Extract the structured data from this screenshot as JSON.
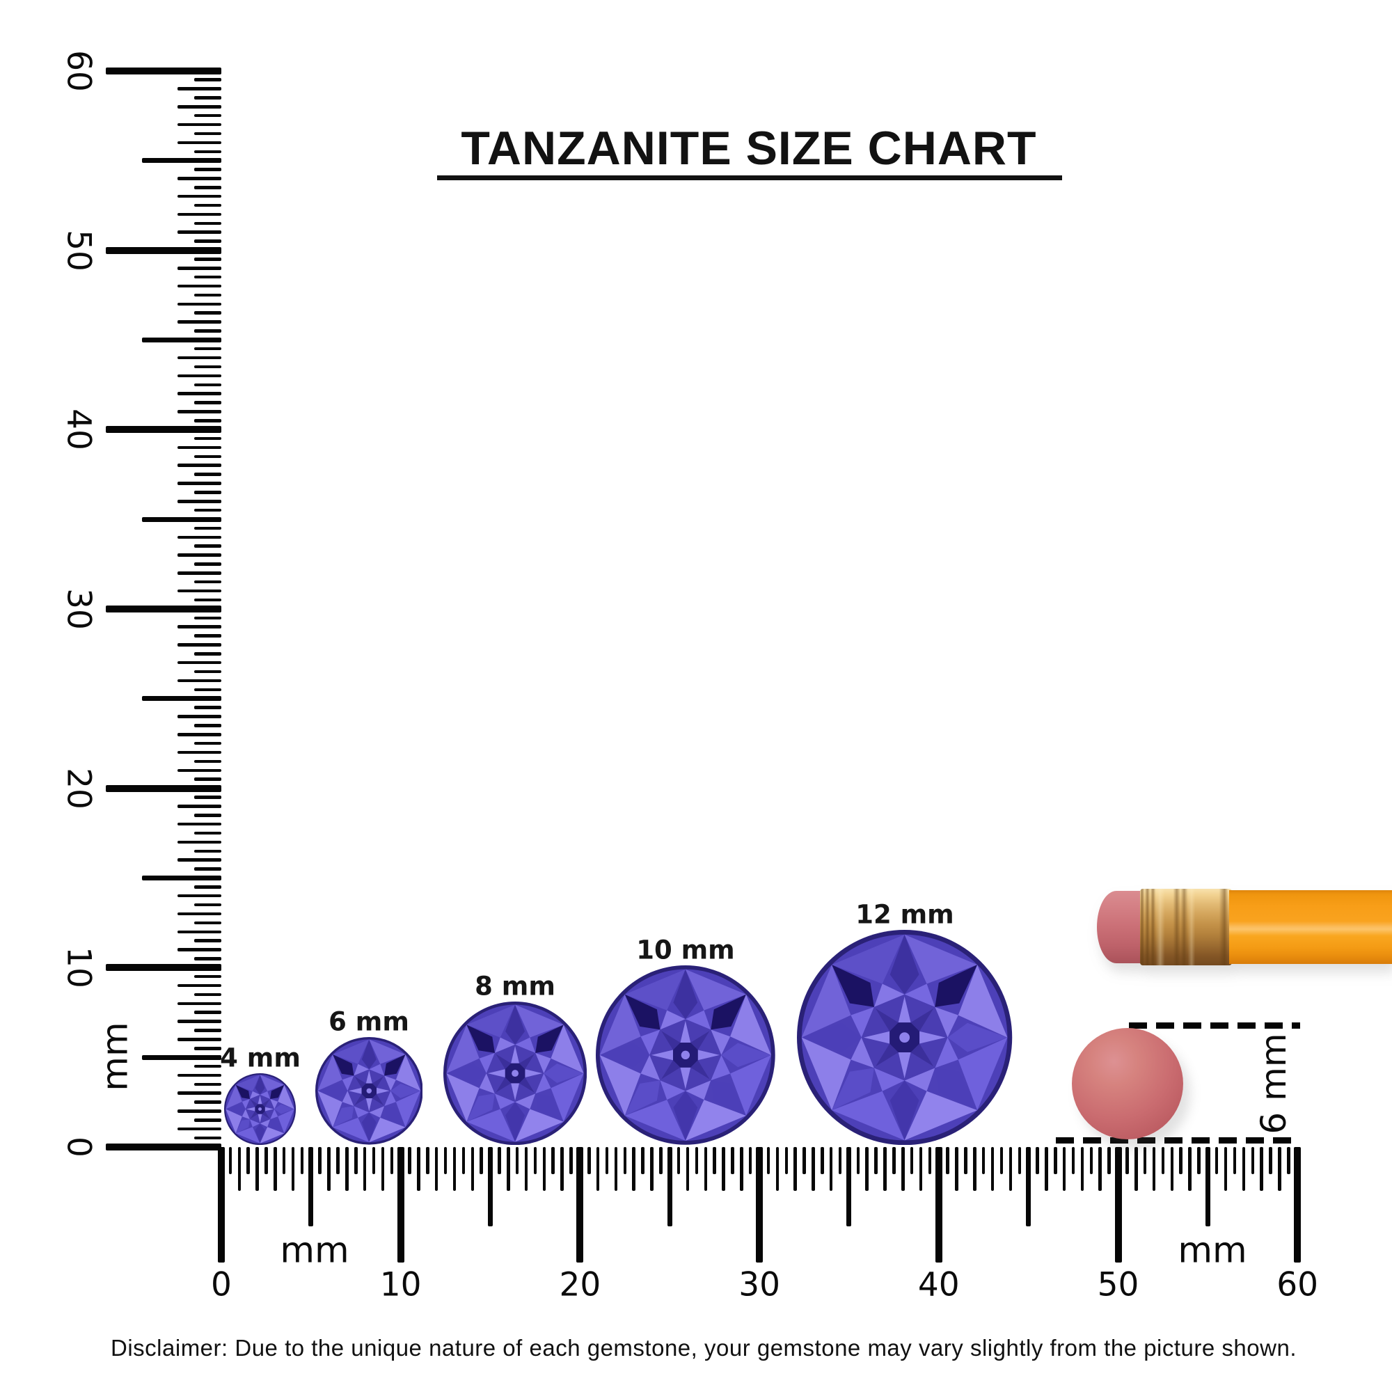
{
  "title": "TANZANITE SIZE CHART",
  "gems": [
    {
      "label": "4 mm",
      "size_mm": 4
    },
    {
      "label": "6 mm",
      "size_mm": 6
    },
    {
      "label": "8 mm",
      "size_mm": 8
    },
    {
      "label": "10 mm",
      "size_mm": 10
    },
    {
      "label": "12 mm",
      "size_mm": 12
    }
  ],
  "vertical_ruler": {
    "unit": "mm",
    "tick_labels": [
      "0",
      "10",
      "20",
      "30",
      "40",
      "50",
      "60"
    ],
    "range_mm": 60
  },
  "horizontal_ruler": {
    "unit_left": "mm",
    "unit_right": "mm",
    "tick_labels": [
      "0",
      "10",
      "20",
      "30",
      "40",
      "50",
      "60"
    ],
    "range_mm": 60
  },
  "size_annotation": {
    "label": "6 mm"
  },
  "disclaimer": "Disclaimer: Due to the unique nature of each gemstone, your gemstone may vary slightly from the picture shown.",
  "colors": {
    "gem_primary": "#4D40B8",
    "gem_light": "#8D7FE9",
    "gem_dark": "#241B76",
    "pencil_body": "#F9A41F",
    "ferrule_gold": "#C99850",
    "eraser_pink": "#CA6C70",
    "ink": "#000000"
  }
}
